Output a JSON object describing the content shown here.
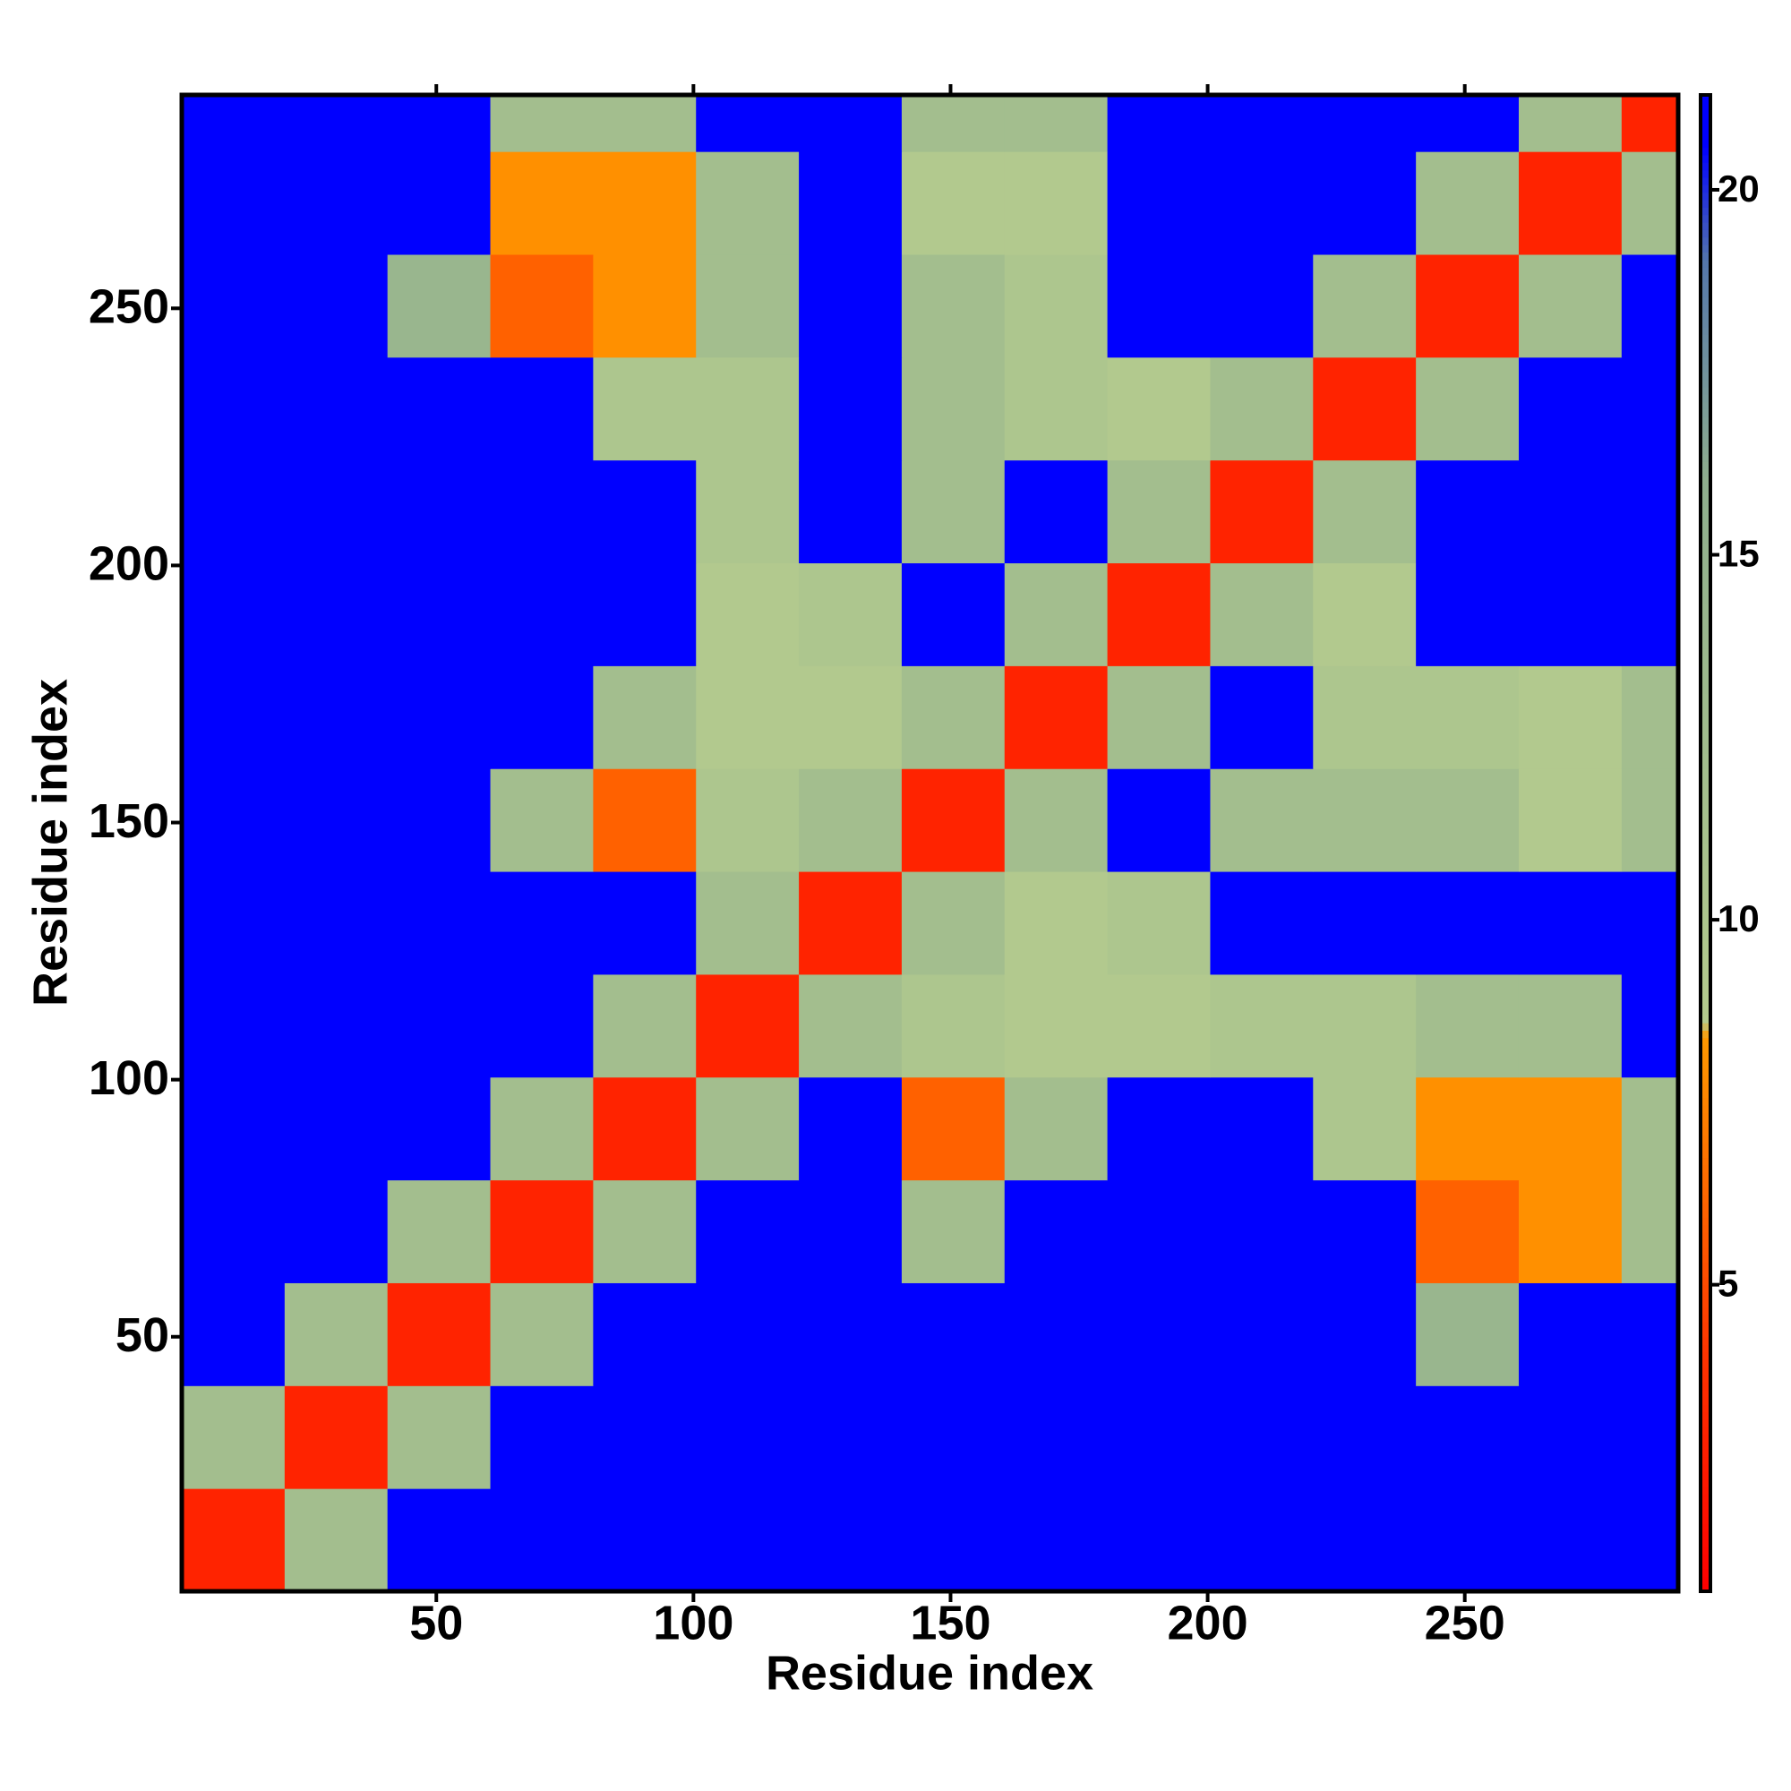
{
  "chart_data": {
    "type": "heatmap",
    "xlabel": "Residue index",
    "ylabel": "Residue index",
    "x_bins": [
      0.5,
      20.5,
      40.5,
      60.5,
      80.5,
      100.5,
      120.5,
      140.5,
      160.5,
      180.5,
      200.5,
      220.5,
      240.5,
      260.5,
      280.5,
      291.5
    ],
    "y_bins": [
      0.5,
      20.5,
      40.5,
      60.5,
      80.5,
      100.5,
      120.5,
      140.5,
      160.5,
      180.5,
      200.5,
      220.5,
      240.5,
      260.5,
      280.5,
      291.5
    ],
    "xlim": [
      0.5,
      291.5
    ],
    "ylim": [
      0.5,
      291.5
    ],
    "xticks": [
      50,
      100,
      150,
      200,
      250
    ],
    "yticks": [
      50,
      100,
      150,
      200,
      250
    ],
    "zlim": [
      0.8,
      21.3
    ],
    "zticks": [
      5,
      10,
      15,
      20
    ],
    "colorscale": [
      [
        0.8,
        "#ff0000"
      ],
      [
        4,
        "#ff3300"
      ],
      [
        8.4,
        "#ff9900"
      ],
      [
        8.6,
        "#b4cb8e"
      ],
      [
        16,
        "#8fae8e"
      ],
      [
        19,
        "#5577aa"
      ],
      [
        20.6,
        "#0000ff"
      ],
      [
        21.3,
        "#0000ff"
      ]
    ],
    "z": [
      [
        3,
        12,
        21,
        21,
        21,
        21,
        21,
        21,
        21,
        21,
        21,
        21,
        21,
        21,
        21
      ],
      [
        12,
        3,
        12,
        21,
        21,
        21,
        21,
        21,
        21,
        21,
        21,
        21,
        21,
        21,
        21
      ],
      [
        21,
        12,
        3,
        12,
        21,
        21,
        21,
        21,
        21,
        21,
        21,
        21,
        14,
        21,
        21
      ],
      [
        21,
        21,
        12,
        3,
        12,
        21,
        21,
        12,
        21,
        21,
        21,
        21,
        6,
        8,
        12
      ],
      [
        21,
        21,
        21,
        12,
        3,
        12,
        21,
        6,
        12,
        21,
        21,
        10,
        8,
        8,
        12
      ],
      [
        21,
        21,
        21,
        21,
        12,
        3,
        12,
        10,
        9,
        9,
        10,
        10,
        12,
        12,
        21
      ],
      [
        21,
        21,
        21,
        21,
        21,
        12,
        3,
        12,
        9,
        10,
        21,
        21,
        21,
        21,
        21
      ],
      [
        21,
        21,
        21,
        12,
        6,
        10,
        12,
        3,
        12,
        21,
        12,
        12,
        12,
        9,
        12
      ],
      [
        21,
        21,
        21,
        21,
        12,
        9,
        9,
        12,
        3,
        12,
        21,
        10,
        10,
        9,
        12
      ],
      [
        21,
        21,
        21,
        21,
        21,
        9,
        10,
        21,
        12,
        3,
        12,
        9,
        21,
        21,
        21
      ],
      [
        21,
        21,
        21,
        21,
        21,
        10,
        21,
        12,
        21,
        12,
        3,
        12,
        21,
        21,
        21
      ],
      [
        21,
        21,
        21,
        21,
        10,
        10,
        21,
        12,
        10,
        9,
        12,
        3,
        12,
        21,
        21
      ],
      [
        21,
        21,
        14,
        6,
        8,
        12,
        21,
        12,
        10,
        21,
        21,
        12,
        3,
        12,
        21
      ],
      [
        21,
        21,
        21,
        8,
        8,
        12,
        21,
        9,
        9,
        21,
        21,
        21,
        12,
        3,
        12
      ],
      [
        21,
        21,
        21,
        12,
        12,
        21,
        21,
        12,
        12,
        21,
        21,
        21,
        21,
        12,
        3
      ]
    ]
  }
}
